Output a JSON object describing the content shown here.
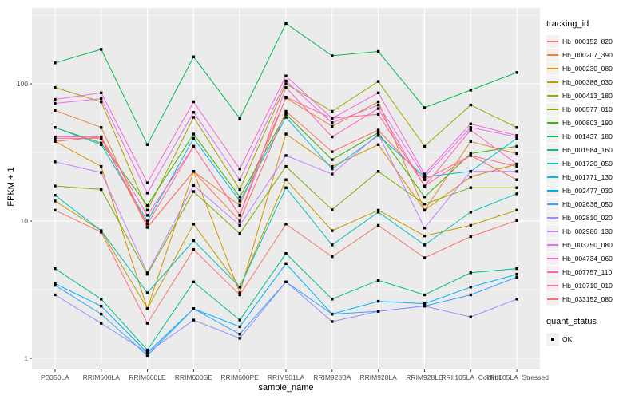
{
  "chart_data": {
    "type": "line",
    "title": "",
    "xlabel": "sample_name",
    "ylabel": "FPKM + 1",
    "y_scale": "log10",
    "y_ticks": [
      1,
      10,
      100
    ],
    "y_minor_gridlines": [
      3.162,
      31.62,
      316.2
    ],
    "ylim_log": [
      1,
      340
    ],
    "grid": true,
    "panel_bg": "#EBEBEB",
    "gridline_color": "#FFFFFF",
    "tick_label_color": "#4D4D4D",
    "point_shape": "filled-black-square",
    "x_categories": [
      "PB350LA",
      "RRIM600LA",
      "RRIM600LE",
      "RRIM600SE",
      "RRIM600PE",
      "RRIM901LA",
      "RRIM928BA",
      "RRIM928LA",
      "RRIM928LE",
      "RRII105LA_Control",
      "RRII105LA_Stressed"
    ],
    "legend": {
      "title": "tracking_id",
      "position": "right"
    },
    "quant_legend": {
      "title": "quant_status",
      "items": [
        {
          "label": "OK",
          "marker": "black-square"
        }
      ]
    },
    "series": [
      {
        "name": "Hb_000152_820",
        "color": "#F8766D",
        "values": [
          12,
          8.3,
          1.8,
          6.2,
          2.9,
          9.5,
          5.5,
          9.3,
          5.4,
          7.7,
          10.1
        ]
      },
      {
        "name": "Hb_000207_390",
        "color": "#EA8331",
        "values": [
          64,
          48,
          9,
          23,
          13,
          79,
          49,
          74,
          12,
          38,
          31
        ]
      },
      {
        "name": "Hb_000230_080",
        "color": "#D89000",
        "values": [
          38,
          25,
          2.3,
          23,
          3.0,
          43,
          25,
          36,
          12,
          21,
          26
        ]
      },
      {
        "name": "Hb_000386_030",
        "color": "#C09B00",
        "values": [
          14,
          8.5,
          2.3,
          9.5,
          3.3,
          20,
          8.5,
          12,
          7.8,
          9.3,
          12
        ]
      },
      {
        "name": "Hb_000413_180",
        "color": "#A3A500",
        "values": [
          94,
          74,
          12,
          57,
          17,
          100,
          63,
          104,
          35,
          70,
          48
        ]
      },
      {
        "name": "Hb_000577_010",
        "color": "#7CAE00",
        "values": [
          18,
          17,
          4.1,
          16.4,
          8.1,
          25,
          12.1,
          23,
          13.3,
          17.5,
          17.5
        ]
      },
      {
        "name": "Hb_000803_190",
        "color": "#39B600",
        "values": [
          48,
          37,
          13,
          43,
          15,
          60,
          28,
          44,
          15,
          31,
          35
        ]
      },
      {
        "name": "Hb_001437_180",
        "color": "#00BB4E",
        "values": [
          142,
          178,
          36,
          157,
          56,
          275,
          160,
          172,
          67,
          90,
          121
        ]
      },
      {
        "name": "Hb_001584_160",
        "color": "#00C087",
        "values": [
          4.5,
          2.7,
          1.15,
          3.6,
          1.9,
          5.8,
          2.7,
          3.7,
          2.9,
          4.2,
          4.5
        ]
      },
      {
        "name": "Hb_001720_050",
        "color": "#00C0B5",
        "values": [
          15.4,
          8.5,
          3.0,
          7.2,
          3.3,
          17.5,
          6.7,
          11.6,
          6.7,
          11.6,
          15.8
        ]
      },
      {
        "name": "Hb_001771_130",
        "color": "#00BCD8",
        "values": [
          48,
          36,
          10,
          40,
          14,
          57,
          24,
          42,
          21,
          23,
          40
        ]
      },
      {
        "name": "Hb_002477_030",
        "color": "#00B0F6",
        "values": [
          3.5,
          2.4,
          1.1,
          2.3,
          1.7,
          4.9,
          2.1,
          2.6,
          2.5,
          3.3,
          4.1
        ]
      },
      {
        "name": "Hb_002636_050",
        "color": "#35A2FF",
        "values": [
          3.4,
          2.1,
          1.05,
          2.3,
          1.5,
          3.6,
          2.1,
          2.2,
          2.4,
          2.9,
          3.9
        ]
      },
      {
        "name": "Hb_002810_020",
        "color": "#9590FF",
        "values": [
          2.9,
          1.8,
          1.1,
          1.9,
          1.4,
          3.6,
          1.85,
          2.2,
          2.4,
          2.0,
          2.7
        ]
      },
      {
        "name": "Hb_002986_130",
        "color": "#C77CFF",
        "values": [
          27,
          22.6,
          4.2,
          18.2,
          9.3,
          30,
          22,
          43,
          8.9,
          23,
          23
        ]
      },
      {
        "name": "Hb_003750_080",
        "color": "#E76BF3",
        "values": [
          72,
          78,
          16,
          62,
          20,
          105,
          52,
          70,
          21,
          48,
          41
        ]
      },
      {
        "name": "Hb_004734_060",
        "color": "#FA62DB",
        "values": [
          77,
          86,
          19,
          74,
          24,
          114,
          56,
          86,
          22,
          51,
          42
        ]
      },
      {
        "name": "Hb_007757_110",
        "color": "#FF62BC",
        "values": [
          41,
          41,
          11,
          35,
          11,
          94,
          41,
          66,
          18,
          46,
          26
        ]
      },
      {
        "name": "Hb_010710_010",
        "color": "#FF6A98",
        "values": [
          40,
          40,
          9.5,
          35,
          11,
          80,
          56,
          60,
          18,
          30,
          25
        ]
      },
      {
        "name": "Hb_033152_080",
        "color": "#FF6C67",
        "values": [
          38,
          41,
          9,
          23,
          10,
          63,
          32,
          46,
          20,
          30,
          20
        ]
      }
    ]
  }
}
